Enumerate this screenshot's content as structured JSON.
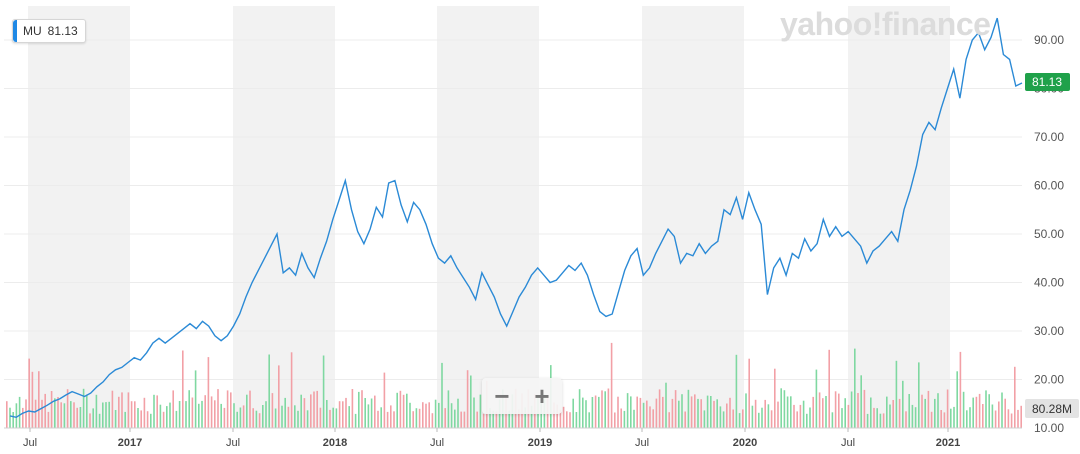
{
  "ticker": {
    "symbol": "MU",
    "value": "81.13",
    "color": "#1e88e5"
  },
  "brand": "yahoo!finance",
  "zoom": {
    "minus": "−",
    "plus": "+"
  },
  "price_badge": {
    "text": "81.13",
    "color": "#1fa14a"
  },
  "volume_badge": {
    "text": "80.28M"
  },
  "colors": {
    "line": "#2b8ad6",
    "vol_up": "#7fd8a1",
    "vol_down": "#f2a0a6",
    "band": "#f2f2f2"
  },
  "chart_data": {
    "type": "line",
    "series": [
      {
        "name": "MU",
        "values": [
          12.5,
          12.2,
          13,
          13.5,
          13.3,
          14,
          14.7,
          15.5,
          16,
          16.8,
          17.5,
          17,
          16.5,
          17.2,
          18.5,
          19.5,
          21,
          22,
          22.5,
          23.5,
          24.5,
          24,
          25.5,
          27.5,
          28.5,
          27.5,
          28.5,
          29.5,
          30.5,
          31.5,
          30.5,
          32,
          31,
          29,
          28,
          29,
          31,
          33.5,
          37,
          40,
          42.5,
          45,
          47.5,
          50,
          42,
          43,
          41.5,
          46,
          43,
          41,
          45,
          48.5,
          53,
          57,
          61,
          55,
          50.5,
          48,
          51,
          55.5,
          53.5,
          60.5,
          61,
          56,
          52.5,
          56.5,
          55,
          52,
          48,
          45,
          44,
          45.5,
          43,
          41,
          39,
          36.5,
          42,
          39.5,
          37,
          33.5,
          31,
          34,
          37,
          39,
          41.5,
          43,
          41.5,
          40,
          40.5,
          42,
          43.5,
          42.5,
          44,
          41.5,
          37.5,
          34,
          33,
          33.5,
          38,
          42.5,
          45.5,
          47,
          41.5,
          43,
          46,
          48.5,
          51,
          49.5,
          44,
          46,
          45.5,
          48,
          46,
          47.5,
          48.5,
          55,
          54,
          57.5,
          53,
          58.5,
          55,
          52,
          37.5,
          43,
          45,
          41.5,
          46,
          45,
          49,
          46.5,
          48,
          53,
          49.5,
          51.5,
          49.5,
          50.5,
          49,
          47.5,
          44,
          46.5,
          47.5,
          49,
          50.5,
          48.5,
          55,
          59,
          64,
          70.5,
          73,
          71.5,
          76,
          80,
          84,
          78,
          86,
          90,
          91.5,
          88,
          90.5,
          94.5,
          87,
          86,
          80.5,
          81.13
        ]
      }
    ],
    "x_labels": [
      "Jul",
      "2017",
      "Jul",
      "2018",
      "Jul",
      "2019",
      "Jul",
      "2020",
      "Jul",
      "2021"
    ],
    "ylim": [
      10,
      97
    ],
    "y_ticks": [
      20,
      30,
      40,
      50,
      60,
      70,
      80,
      90
    ],
    "y_tick_labels": [
      "20.00",
      "30.00",
      "40.00",
      "50.00",
      "60.00",
      "70.00",
      "80.00",
      "90.00"
    ],
    "y_tick_partial": "10.00",
    "grid": true,
    "volume_bars": true
  }
}
